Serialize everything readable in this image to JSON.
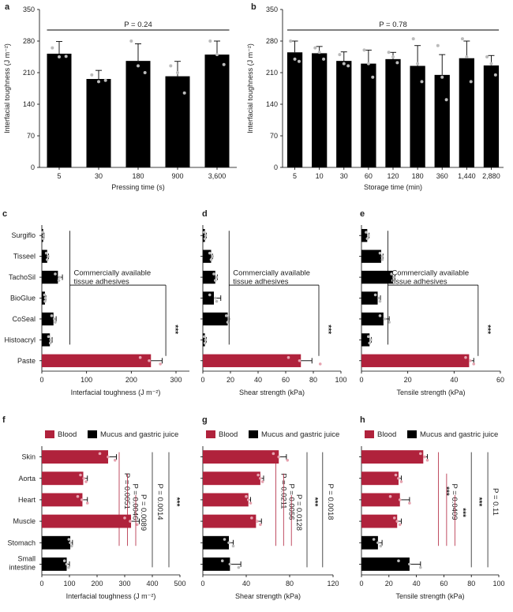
{
  "panels": [
    {
      "letter": "a",
      "orient": "v",
      "type": "bar",
      "ylabel": "Interfacial toughness (J m⁻²)",
      "xlabel": "Pressing time (s)",
      "ylim": [
        0,
        350
      ],
      "yticks": [
        0,
        70,
        140,
        210,
        280,
        350
      ],
      "categories": [
        "5",
        "30",
        "180",
        "900",
        "3,600"
      ],
      "values": [
        252,
        196,
        236,
        202,
        250
      ],
      "errors": [
        27,
        19,
        38,
        33,
        30
      ],
      "points": [
        [
          265,
          245,
          246
        ],
        [
          205,
          190,
          193
        ],
        [
          280,
          225,
          210
        ],
        [
          225,
          210,
          165
        ],
        [
          280,
          250,
          228
        ]
      ],
      "p_label": "P = 0.24",
      "bar_color": "#000000"
    },
    {
      "letter": "b",
      "orient": "v",
      "type": "bar",
      "ylabel": "Interfacial toughness (J m⁻²)",
      "xlabel": "Storage time (min)",
      "ylim": [
        0,
        350
      ],
      "yticks": [
        0,
        70,
        140,
        210,
        280,
        350
      ],
      "categories": [
        "5",
        "10",
        "30",
        "60",
        "120",
        "180",
        "360",
        "1,440",
        "2,880"
      ],
      "values": [
        255,
        253,
        236,
        230,
        240,
        225,
        205,
        242,
        226
      ],
      "errors": [
        25,
        15,
        20,
        30,
        15,
        45,
        45,
        38,
        22
      ],
      "points": [
        [
          280,
          240,
          235
        ],
        [
          265,
          255,
          240
        ],
        [
          250,
          230,
          225
        ],
        [
          260,
          230,
          200
        ],
        [
          255,
          245,
          232
        ],
        [
          285,
          230,
          190
        ],
        [
          270,
          200,
          150
        ],
        [
          285,
          245,
          190
        ],
        [
          245,
          230,
          205
        ]
      ],
      "p_label": "P = 0.78",
      "bar_color": "#000000"
    },
    {
      "letter": "c",
      "orient": "h",
      "type": "bar",
      "xlabel": "Interfacial toughness (J m⁻²)",
      "xlim": [
        0,
        330
      ],
      "xticks": [
        0,
        100,
        200,
        300
      ],
      "categories": [
        "Surgiflo",
        "Tisseel",
        "TachoSil",
        "BioGlue",
        "CoSeal",
        "Histoacryl",
        "Paste"
      ],
      "values": [
        3,
        12,
        36,
        7,
        26,
        18,
        244
      ],
      "errors": [
        2,
        3,
        10,
        2,
        6,
        5,
        25
      ],
      "points": [
        [
          2,
          4,
          3
        ],
        [
          10,
          14,
          12
        ],
        [
          30,
          40,
          38
        ],
        [
          6,
          8,
          7
        ],
        [
          22,
          28,
          30
        ],
        [
          15,
          20,
          19
        ],
        [
          220,
          240,
          265
        ]
      ],
      "highlight": [
        false,
        false,
        false,
        false,
        false,
        false,
        true
      ],
      "annotation_line1": "Commercially available",
      "annotation_line2": "tissue adhesives",
      "stars": "***"
    },
    {
      "letter": "d",
      "orient": "h",
      "type": "bar",
      "xlabel": "Shear strength (kPa)",
      "xlim": [
        0,
        100
      ],
      "xticks": [
        0,
        20,
        40,
        60,
        80,
        100
      ],
      "categories": [
        "Surgiflo",
        "Tisseel",
        "TachoSil",
        "BioGlue",
        "CoSeal",
        "Histoacryl",
        "Paste"
      ],
      "values": [
        1.5,
        6,
        9,
        8,
        18,
        1.5,
        71
      ],
      "errors": [
        1,
        1,
        1.5,
        5,
        1,
        1,
        8
      ],
      "points": [
        [
          1,
          2,
          1.5
        ],
        [
          5,
          7,
          6
        ],
        [
          8,
          10,
          9
        ],
        [
          5,
          9,
          10
        ],
        [
          17,
          19,
          18
        ],
        [
          1,
          2,
          1.5
        ],
        [
          62,
          70,
          85
        ]
      ],
      "highlight": [
        false,
        false,
        false,
        false,
        false,
        false,
        true
      ],
      "annotation_line1": "Commercially available",
      "annotation_line2": "tissue adhesives",
      "stars": "***"
    },
    {
      "letter": "e",
      "orient": "h",
      "type": "bar",
      "xlabel": "Tensile strength (kPa)",
      "xlim": [
        0,
        60
      ],
      "xticks": [
        0,
        20,
        40,
        60
      ],
      "categories": [
        "Surgiflo",
        "Tisseel",
        "TachoSil",
        "BioGlue",
        "CoSeal",
        "Histoacryl",
        "Paste"
      ],
      "values": [
        2.5,
        8.5,
        13.5,
        7,
        9.5,
        3.5,
        46.5
      ],
      "errors": [
        0.8,
        0.8,
        1,
        1.2,
        2.5,
        0.8,
        2
      ],
      "points": [
        [
          2,
          3,
          2.5
        ],
        [
          8,
          9,
          9
        ],
        [
          13,
          14,
          13.5
        ],
        [
          6,
          7.5,
          8
        ],
        [
          8,
          10,
          12
        ],
        [
          3,
          4,
          3.5
        ],
        [
          45,
          47,
          48.5
        ]
      ],
      "highlight": [
        false,
        false,
        false,
        false,
        false,
        false,
        true
      ],
      "annotation_line1": "Commercially available",
      "annotation_line2": "tissue adhesives",
      "stars": "***"
    },
    {
      "letter": "f",
      "orient": "h",
      "type": "bar",
      "xlabel": "Interfacial toughness (J m⁻²)",
      "xlim": [
        0,
        500
      ],
      "xticks": [
        0,
        100,
        200,
        300,
        400,
        500
      ],
      "categories": [
        "Skin",
        "Aorta",
        "Heart",
        "Muscle",
        "Stomach",
        "Small intestine"
      ],
      "values": [
        240,
        150,
        147,
        323,
        103,
        90
      ],
      "errors": [
        30,
        15,
        18,
        30,
        8,
        10
      ],
      "points": [
        [
          210,
          240,
          265
        ],
        [
          140,
          152,
          160
        ],
        [
          130,
          145,
          165
        ],
        [
          300,
          320,
          345
        ],
        [
          98,
          103,
          108
        ],
        [
          82,
          90,
          97
        ]
      ],
      "highlight": [
        true,
        true,
        true,
        true,
        false,
        false
      ],
      "legend": [
        "Blood",
        "Mucus and gastric juice"
      ],
      "brackets": [
        {
          "label": "P = 0.0051",
          "color": "#b0223c"
        },
        {
          "label": "P = 0.0046",
          "color": "#b0223c"
        },
        {
          "label": "P = 0.0089",
          "color": "#b0223c"
        },
        {
          "label": "P = 0.0014",
          "color": "#222222"
        },
        {
          "label": "***",
          "color": "#222222"
        }
      ]
    },
    {
      "letter": "g",
      "orient": "h",
      "type": "bar",
      "xlabel": "Shear strength (kPa)",
      "xlim": [
        0,
        120
      ],
      "xticks": [
        0,
        40,
        80,
        120
      ],
      "categories": [
        "Skin",
        "Aorta",
        "Heart",
        "Muscle",
        "Stomach",
        "Small intestine"
      ],
      "values": [
        70,
        53,
        42,
        49,
        24,
        25
      ],
      "errors": [
        7,
        3,
        2,
        5,
        4,
        10
      ],
      "points": [
        [
          65,
          70,
          78
        ],
        [
          51,
          53,
          55
        ],
        [
          40,
          42,
          44
        ],
        [
          45,
          50,
          53
        ],
        [
          20,
          24,
          28
        ],
        [
          18,
          25,
          33
        ]
      ],
      "highlight": [
        true,
        true,
        true,
        true,
        false,
        false
      ],
      "legend": [
        "Blood",
        "Mucus and gastric juice"
      ],
      "brackets": [
        {
          "label": "P = 0.0211",
          "color": "#b0223c"
        },
        {
          "label": "P = 0.0056",
          "color": "#b0223c"
        },
        {
          "label": "P = 0.0128",
          "color": "#b0223c"
        },
        {
          "label": "***",
          "color": "#222222"
        },
        {
          "label": "P = 0.0018",
          "color": "#222222"
        }
      ]
    },
    {
      "letter": "h",
      "orient": "h",
      "type": "bar",
      "xlabel": "Tensile strength (kPa)",
      "xlim": [
        0,
        100
      ],
      "xticks": [
        0,
        20,
        40,
        60,
        80,
        100
      ],
      "categories": [
        "Skin",
        "Aorta",
        "Heart",
        "Muscle",
        "Stomach",
        "Small intestine"
      ],
      "values": [
        45,
        27,
        28,
        26,
        12,
        35
      ],
      "errors": [
        3,
        2,
        7,
        3,
        3,
        8
      ],
      "points": [
        [
          43,
          46,
          48
        ],
        [
          25,
          27,
          29
        ],
        [
          21,
          28,
          35
        ],
        [
          24,
          26,
          28
        ],
        [
          9,
          12,
          14
        ],
        [
          27,
          35,
          43
        ]
      ],
      "highlight": [
        true,
        true,
        true,
        true,
        false,
        false
      ],
      "legend": [
        "Blood",
        "Mucus and gastric juice"
      ],
      "brackets": [
        {
          "label": "***",
          "color": "#b0223c"
        },
        {
          "label": "P = 0.0409",
          "color": "#b0223c"
        },
        {
          "label": "***",
          "color": "#b0223c"
        },
        {
          "label": "***",
          "color": "#222222"
        },
        {
          "label": "P = 0.11",
          "color": "#222222"
        }
      ]
    }
  ],
  "chart_data": [
    {
      "type": "bar",
      "panel": "a",
      "categories": [
        "5",
        "30",
        "180",
        "900",
        "3,600"
      ],
      "values": [
        252,
        196,
        236,
        202,
        250
      ],
      "xlabel": "Pressing time (s)",
      "ylabel": "Interfacial toughness (J m⁻²)",
      "ylim": [
        0,
        350
      ],
      "annotation": "P = 0.24"
    },
    {
      "type": "bar",
      "panel": "b",
      "categories": [
        "5",
        "10",
        "30",
        "60",
        "120",
        "180",
        "360",
        "1,440",
        "2,880"
      ],
      "values": [
        255,
        253,
        236,
        230,
        240,
        225,
        205,
        242,
        226
      ],
      "xlabel": "Storage time (min)",
      "ylabel": "Interfacial toughness (J m⁻²)",
      "ylim": [
        0,
        350
      ],
      "annotation": "P = 0.78"
    },
    {
      "type": "bar",
      "panel": "c",
      "orientation": "horizontal",
      "categories": [
        "Surgiflo",
        "Tisseel",
        "TachoSil",
        "BioGlue",
        "CoSeal",
        "Histoacryl",
        "Paste"
      ],
      "values": [
        3,
        12,
        36,
        7,
        26,
        18,
        244
      ],
      "xlabel": "Interfacial toughness (J m⁻²)",
      "xlim": [
        0,
        330
      ]
    },
    {
      "type": "bar",
      "panel": "d",
      "orientation": "horizontal",
      "categories": [
        "Surgiflo",
        "Tisseel",
        "TachoSil",
        "BioGlue",
        "CoSeal",
        "Histoacryl",
        "Paste"
      ],
      "values": [
        1.5,
        6,
        9,
        8,
        18,
        1.5,
        71
      ],
      "xlabel": "Shear strength (kPa)",
      "xlim": [
        0,
        100
      ]
    },
    {
      "type": "bar",
      "panel": "e",
      "orientation": "horizontal",
      "categories": [
        "Surgiflo",
        "Tisseel",
        "TachoSil",
        "BioGlue",
        "CoSeal",
        "Histoacryl",
        "Paste"
      ],
      "values": [
        2.5,
        8.5,
        13.5,
        7,
        9.5,
        3.5,
        46.5
      ],
      "xlabel": "Tensile strength (kPa)",
      "xlim": [
        0,
        60
      ]
    },
    {
      "type": "bar",
      "panel": "f",
      "orientation": "horizontal",
      "categories": [
        "Skin",
        "Aorta",
        "Heart",
        "Muscle",
        "Stomach",
        "Small intestine"
      ],
      "series": [
        {
          "name": "Blood",
          "values": [
            240,
            150,
            147,
            323,
            null,
            null
          ]
        },
        {
          "name": "Mucus and gastric juice",
          "values": [
            null,
            null,
            null,
            null,
            103,
            90
          ]
        }
      ],
      "xlabel": "Interfacial toughness (J m⁻²)",
      "xlim": [
        0,
        500
      ]
    },
    {
      "type": "bar",
      "panel": "g",
      "orientation": "horizontal",
      "categories": [
        "Skin",
        "Aorta",
        "Heart",
        "Muscle",
        "Stomach",
        "Small intestine"
      ],
      "series": [
        {
          "name": "Blood",
          "values": [
            70,
            53,
            42,
            49,
            null,
            null
          ]
        },
        {
          "name": "Mucus and gastric juice",
          "values": [
            null,
            null,
            null,
            null,
            24,
            25
          ]
        }
      ],
      "xlabel": "Shear strength (kPa)",
      "xlim": [
        0,
        120
      ]
    },
    {
      "type": "bar",
      "panel": "h",
      "orientation": "horizontal",
      "categories": [
        "Skin",
        "Aorta",
        "Heart",
        "Muscle",
        "Stomach",
        "Small intestine"
      ],
      "series": [
        {
          "name": "Blood",
          "values": [
            45,
            27,
            28,
            26,
            null,
            null
          ]
        },
        {
          "name": "Mucus and gastric juice",
          "values": [
            null,
            null,
            null,
            null,
            12,
            35
          ]
        }
      ],
      "xlabel": "Tensile strength (kPa)",
      "xlim": [
        0,
        100
      ]
    }
  ],
  "colors": {
    "black": "#000000",
    "crimson": "#b0223c",
    "dot": "#bbbbbb",
    "dot_red": "#e6a3b0"
  }
}
